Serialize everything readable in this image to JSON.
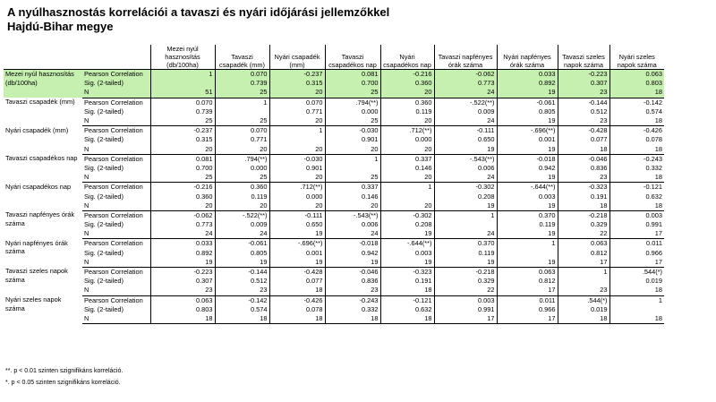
{
  "title_line1": "A nyúlhasznostás korrelációi a tavaszi és nyári időjárási jellemzőkkel",
  "title_line2": "Hajdú-Bihar megye",
  "columns": [
    "Mezei nyúl hasznosítás (db/100ha)",
    "Tavaszi csapadék (mm)",
    "Nyári csapadék (mm)",
    "Tavaszi csapadékos nap",
    "Nyári csapadékos nap",
    "Tavaszi napfényes órák száma",
    "Nyári napfényes órák száma",
    "Tavaszi szeles napok száma",
    "Nyári szeles napok száma"
  ],
  "stat_labels": [
    "Pearson Correlation",
    "Sig. (2-tailed)",
    "N"
  ],
  "rows": [
    {
      "label": "Mezei nyúl hasznosítás (db/100ha)",
      "r": [
        "1",
        "0.070",
        "-0.237",
        "0.081",
        "-0.216",
        "-0.062",
        "0.033",
        "-0.223",
        "0.063"
      ],
      "sig": [
        "",
        "0.739",
        "0.315",
        "0.700",
        "0.360",
        "0.773",
        "0.892",
        "0.307",
        "0.803"
      ],
      "n": [
        "51",
        "25",
        "20",
        "25",
        "20",
        "24",
        "19",
        "23",
        "18"
      ]
    },
    {
      "label": "Tavaszi csapadék (mm)",
      "r": [
        "0.070",
        "1",
        "0.070",
        ".794(**)",
        "0.360",
        "-.522(**)",
        "-0.061",
        "-0.144",
        "-0.142"
      ],
      "sig": [
        "0.739",
        "",
        "0.771",
        "0.000",
        "0.119",
        "0.009",
        "0.805",
        "0.512",
        "0.574"
      ],
      "n": [
        "25",
        "25",
        "20",
        "25",
        "20",
        "24",
        "19",
        "23",
        "18"
      ]
    },
    {
      "label": "Nyári csapadék (mm)",
      "r": [
        "-0.237",
        "0.070",
        "1",
        "-0.030",
        ".712(**)",
        "-0.111",
        "-.696(**)",
        "-0.428",
        "-0.426"
      ],
      "sig": [
        "0.315",
        "0.771",
        "",
        "0.901",
        "0.000",
        "0.650",
        "0.001",
        "0.077",
        "0.078"
      ],
      "n": [
        "20",
        "20",
        "20",
        "20",
        "20",
        "19",
        "19",
        "18",
        "18"
      ]
    },
    {
      "label": "Tavaszi csapadékos nap",
      "r": [
        "0.081",
        ".794(**)",
        "-0.030",
        "1",
        "0.337",
        "-.543(**)",
        "-0.018",
        "-0.046",
        "-0.243"
      ],
      "sig": [
        "0.700",
        "0.000",
        "0.901",
        "",
        "0.146",
        "0.006",
        "0.942",
        "0.836",
        "0.332"
      ],
      "n": [
        "25",
        "25",
        "20",
        "25",
        "20",
        "24",
        "19",
        "23",
        "18"
      ]
    },
    {
      "label": "Nyári csapadékos nap",
      "r": [
        "-0.216",
        "0.360",
        ".712(**)",
        "0.337",
        "1",
        "-0.302",
        "-.644(**)",
        "-0.323",
        "-0.121"
      ],
      "sig": [
        "0.360",
        "0.119",
        "0.000",
        "0.146",
        "",
        "0.208",
        "0.003",
        "0.191",
        "0.632"
      ],
      "n": [
        "20",
        "20",
        "20",
        "20",
        "20",
        "19",
        "19",
        "18",
        "18"
      ]
    },
    {
      "label": "Tavaszi napfényes órák száma",
      "r": [
        "-0.062",
        "-.522(**)",
        "-0.111",
        "-.543(**)",
        "-0.302",
        "1",
        "0.370",
        "-0.218",
        "0.003"
      ],
      "sig": [
        "0.773",
        "0.009",
        "0.650",
        "0.006",
        "0.208",
        "",
        "0.119",
        "0.329",
        "0.991"
      ],
      "n": [
        "24",
        "24",
        "19",
        "24",
        "19",
        "24",
        "19",
        "22",
        "17"
      ]
    },
    {
      "label": "Nyári napfényes órák száma",
      "r": [
        "0.033",
        "-0.061",
        "-.696(**)",
        "-0.018",
        "-.644(**)",
        "0.370",
        "1",
        "0.063",
        "0.011"
      ],
      "sig": [
        "0.892",
        "0.805",
        "0.001",
        "0.942",
        "0.003",
        "0.119",
        "",
        "0.812",
        "0.966"
      ],
      "n": [
        "19",
        "19",
        "19",
        "19",
        "19",
        "19",
        "19",
        "17",
        "17"
      ]
    },
    {
      "label": "Tavaszi szeles napok száma",
      "r": [
        "-0.223",
        "-0.144",
        "-0.428",
        "-0.046",
        "-0.323",
        "-0.218",
        "0.063",
        "1",
        ".544(*)"
      ],
      "sig": [
        "0.307",
        "0.512",
        "0.077",
        "0.836",
        "0.191",
        "0.329",
        "0.812",
        "",
        "0.019"
      ],
      "n": [
        "23",
        "23",
        "18",
        "23",
        "18",
        "22",
        "17",
        "23",
        "18"
      ]
    },
    {
      "label": "Nyári szeles napok száma",
      "r": [
        "0.063",
        "-0.142",
        "-0.426",
        "-0.243",
        "-0.121",
        "0.003",
        "0.011",
        ".544(*)",
        "1"
      ],
      "sig": [
        "0.803",
        "0.574",
        "0.078",
        "0.332",
        "0.632",
        "0.991",
        "0.966",
        "0.019",
        ""
      ],
      "n": [
        "18",
        "18",
        "18",
        "18",
        "18",
        "17",
        "17",
        "18",
        "18"
      ]
    }
  ],
  "footnote1": "**. p < 0.01 szinten szignifikáns korreláció.",
  "footnote2": "*. p < 0.05 szinten szignifikáns korreláció."
}
